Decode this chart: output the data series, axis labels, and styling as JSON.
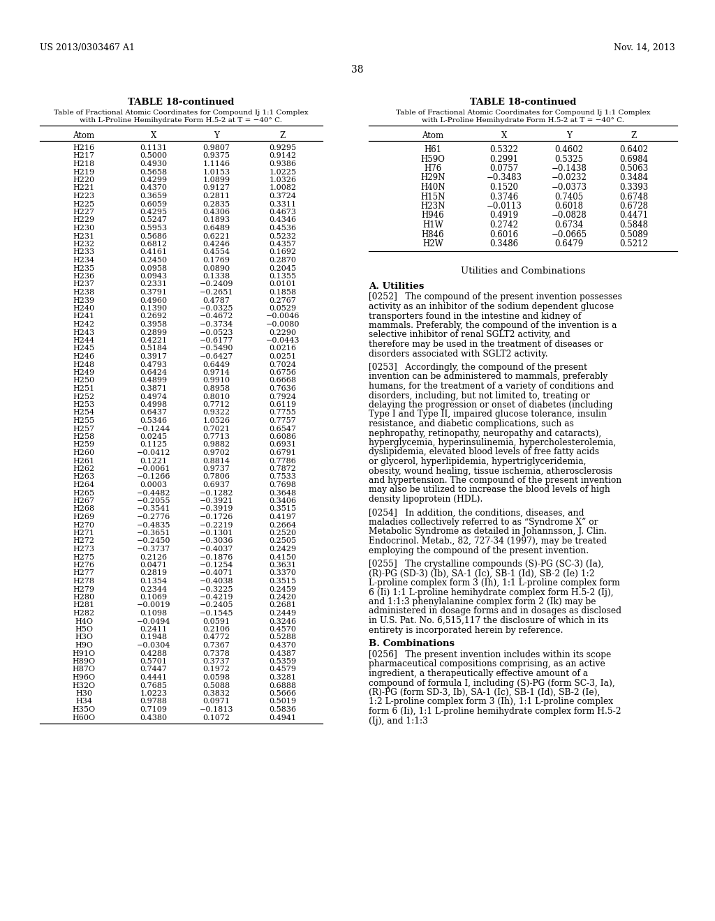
{
  "header_left": "US 2013/0303467 A1",
  "header_right": "Nov. 14, 2013",
  "page_number": "38",
  "left_table_title": "TABLE 18-continued",
  "left_table_subtitle_1": "Table of Fractional Atomic Coordinates for Compound Ij 1:1 Complex",
  "left_table_subtitle_2": "with L-Proline Hemihydrate Form H.5-2 at T = −40° C.",
  "left_columns": [
    "Atom",
    "X",
    "Y",
    "Z"
  ],
  "left_data": [
    [
      "H216",
      "0.1131",
      "0.9807",
      "0.9295"
    ],
    [
      "H217",
      "0.5000",
      "0.9375",
      "0.9142"
    ],
    [
      "H218",
      "0.4930",
      "1.1146",
      "0.9386"
    ],
    [
      "H219",
      "0.5658",
      "1.0153",
      "1.0225"
    ],
    [
      "H220",
      "0.4299",
      "1.0899",
      "1.0326"
    ],
    [
      "H221",
      "0.4370",
      "0.9127",
      "1.0082"
    ],
    [
      "H223",
      "0.3659",
      "0.2811",
      "0.3724"
    ],
    [
      "H225",
      "0.6059",
      "0.2835",
      "0.3311"
    ],
    [
      "H227",
      "0.4295",
      "0.4306",
      "0.4673"
    ],
    [
      "H229",
      "0.5247",
      "0.1893",
      "0.4346"
    ],
    [
      "H230",
      "0.5953",
      "0.6489",
      "0.4536"
    ],
    [
      "H231",
      "0.5686",
      "0.6221",
      "0.5232"
    ],
    [
      "H232",
      "0.6812",
      "0.4246",
      "0.4357"
    ],
    [
      "H233",
      "0.4161",
      "0.4554",
      "0.1692"
    ],
    [
      "H234",
      "0.2450",
      "0.1769",
      "0.2870"
    ],
    [
      "H235",
      "0.0958",
      "0.0890",
      "0.2045"
    ],
    [
      "H236",
      "0.0943",
      "0.1338",
      "0.1355"
    ],
    [
      "H237",
      "0.2331",
      "−0.2409",
      "0.0101"
    ],
    [
      "H238",
      "0.3791",
      "−0.2651",
      "0.1858"
    ],
    [
      "H239",
      "0.4960",
      "0.4787",
      "0.2767"
    ],
    [
      "H240",
      "0.1390",
      "−0.0325",
      "0.0529"
    ],
    [
      "H241",
      "0.2692",
      "−0.4672",
      "−0.0046"
    ],
    [
      "H242",
      "0.3958",
      "−0.3734",
      "−0.0080"
    ],
    [
      "H243",
      "0.2899",
      "−0.0523",
      "0.2290"
    ],
    [
      "H244",
      "0.4221",
      "−0.6177",
      "−0.0443"
    ],
    [
      "H245",
      "0.5184",
      "−0.5490",
      "0.0216"
    ],
    [
      "H246",
      "0.3917",
      "−0.6427",
      "0.0251"
    ],
    [
      "H248",
      "0.4793",
      "0.6449",
      "0.7024"
    ],
    [
      "H249",
      "0.6424",
      "0.9714",
      "0.6756"
    ],
    [
      "H250",
      "0.4899",
      "0.9910",
      "0.6668"
    ],
    [
      "H251",
      "0.3871",
      "0.8958",
      "0.7636"
    ],
    [
      "H252",
      "0.4974",
      "0.8010",
      "0.7924"
    ],
    [
      "H253",
      "0.4998",
      "0.7712",
      "0.6119"
    ],
    [
      "H254",
      "0.6437",
      "0.9322",
      "0.7755"
    ],
    [
      "H255",
      "0.5346",
      "1.0526",
      "0.7757"
    ],
    [
      "H257",
      "−0.1244",
      "0.7021",
      "0.6547"
    ],
    [
      "H258",
      "0.0245",
      "0.7713",
      "0.6086"
    ],
    [
      "H259",
      "0.1125",
      "0.9882",
      "0.6931"
    ],
    [
      "H260",
      "−0.0412",
      "0.9702",
      "0.6791"
    ],
    [
      "H261",
      "0.1221",
      "0.8814",
      "0.7786"
    ],
    [
      "H262",
      "−0.0061",
      "0.9737",
      "0.7872"
    ],
    [
      "H263",
      "−0.1266",
      "0.7806",
      "0.7533"
    ],
    [
      "H264",
      "0.0003",
      "0.6937",
      "0.7698"
    ],
    [
      "H265",
      "−0.4482",
      "−0.1282",
      "0.3648"
    ],
    [
      "H267",
      "−0.2055",
      "−0.3921",
      "0.3406"
    ],
    [
      "H268",
      "−0.3541",
      "−0.3919",
      "0.3515"
    ],
    [
      "H269",
      "−0.2776",
      "−0.1726",
      "0.4197"
    ],
    [
      "H270",
      "−0.4835",
      "−0.2219",
      "0.2664"
    ],
    [
      "H271",
      "−0.3651",
      "−0.1301",
      "0.2520"
    ],
    [
      "H272",
      "−0.2450",
      "−0.3036",
      "0.2505"
    ],
    [
      "H273",
      "−0.3737",
      "−0.4037",
      "0.2429"
    ],
    [
      "H275",
      "0.2126",
      "−0.1876",
      "0.4150"
    ],
    [
      "H276",
      "0.0471",
      "−0.1254",
      "0.3631"
    ],
    [
      "H277",
      "0.2819",
      "−0.4071",
      "0.3370"
    ],
    [
      "H278",
      "0.1354",
      "−0.4038",
      "0.3515"
    ],
    [
      "H279",
      "0.2344",
      "−0.3225",
      "0.2459"
    ],
    [
      "H280",
      "0.1069",
      "−0.4219",
      "0.2420"
    ],
    [
      "H281",
      "−0.0019",
      "−0.2405",
      "0.2681"
    ],
    [
      "H282",
      "0.1098",
      "−0.1545",
      "0.2449"
    ],
    [
      "H4O",
      "−0.0494",
      "0.0591",
      "0.3246"
    ],
    [
      "H5O",
      "0.2411",
      "0.2106",
      "0.4570"
    ],
    [
      "H3O",
      "0.1948",
      "0.4772",
      "0.5288"
    ],
    [
      "H9O",
      "−0.0304",
      "0.7367",
      "0.4370"
    ],
    [
      "H91O",
      "0.4288",
      "0.7378",
      "0.4387"
    ],
    [
      "H89O",
      "0.5701",
      "0.3737",
      "0.5359"
    ],
    [
      "H87O",
      "0.7447",
      "0.1972",
      "0.4579"
    ],
    [
      "H96O",
      "0.4441",
      "0.0598",
      "0.3281"
    ],
    [
      "H32O",
      "0.7685",
      "0.5088",
      "0.6888"
    ],
    [
      "H30",
      "1.0223",
      "0.3832",
      "0.5666"
    ],
    [
      "H34",
      "0.9788",
      "0.0971",
      "0.5019"
    ],
    [
      "H35O",
      "0.7109",
      "−0.1813",
      "0.5836"
    ],
    [
      "H60O",
      "0.4380",
      "0.1072",
      "0.4941"
    ]
  ],
  "right_table_title": "TABLE 18-continued",
  "right_table_subtitle_1": "Table of Fractional Atomic Coordinates for Compound Ij 1:1 Complex",
  "right_table_subtitle_2": "with L-Proline Hemihydrate Form H.5-2 at T = −40° C.",
  "right_columns": [
    "Atom",
    "X",
    "Y",
    "Z"
  ],
  "right_data": [
    [
      "H61",
      "0.5322",
      "0.4602",
      "0.6402"
    ],
    [
      "H59O",
      "0.2991",
      "0.5325",
      "0.6984"
    ],
    [
      "H76",
      "0.0757",
      "−0.1438",
      "0.5063"
    ],
    [
      "H29N",
      "−0.3483",
      "−0.0232",
      "0.3484"
    ],
    [
      "H40N",
      "0.1520",
      "−0.0373",
      "0.3393"
    ],
    [
      "H15N",
      "0.3746",
      "0.7405",
      "0.6748"
    ],
    [
      "H23N",
      "−0.0113",
      "0.6018",
      "0.6728"
    ],
    [
      "H946",
      "0.4919",
      "−0.0828",
      "0.4471"
    ],
    [
      "H1W",
      "0.2742",
      "0.6734",
      "0.5848"
    ],
    [
      "H846",
      "0.6016",
      "−0.0665",
      "0.5089"
    ],
    [
      "H2W",
      "0.3486",
      "0.6479",
      "0.5212"
    ]
  ],
  "section_title": "Utilities and Combinations",
  "section_a": "A. Utilities",
  "para_0252": "[0252]   The compound of the present invention possesses activity as an inhibitor of the sodium dependent glucose transporters found in the intestine and kidney of mammals. Preferably, the compound of the invention is a selective inhibitor of renal SGLT2 activity, and therefore may be used in the treatment of diseases or disorders associated with SGLT2 activity.",
  "para_0253": "[0253]   Accordingly, the compound of the present invention can be administered to mammals, preferably humans, for the treatment of a variety of conditions and disorders, including, but not limited to, treating or delaying the progression or onset of diabetes (including Type I and Type II, impaired glucose tolerance, insulin resistance, and diabetic complications, such as nephropathy, retinopathy, neuropathy and cataracts), hyperglycemia, hyperinsulinemia, hypercholesterolemia, dyslipidemia, elevated blood levels of free fatty acids or glycerol, hyperlipidemia, hypertriglyceridemia, obesity, wound healing, tissue ischemia, atherosclerosis and hypertension. The compound of the present invention may also be utilized to increase the blood levels of high density lipoprotein (HDL).",
  "para_0254": "[0254]   In addition, the conditions, diseases, and maladies collectively referred to as “Syndrome X” or Metabolic Syndrome as detailed in Johannsson, J. Clin. Endocrinol. Metab., 82, 727-34 (1997), may be treated employing the compound of the present invention.",
  "para_0255": "[0255]   The crystalline compounds (S)-PG (SC-3) (Ia), (R)-PG (SD-3) (Ib), SA-1 (Ic), SB-1 (Id), SB-2 (Ie) 1:2 L-proline complex form 3 (Ih), 1:1 L-proline complex form 6 (Ii) 1:1 L-proline hemihydrate complex form H.5-2 (Ij), and 1:1:3 phenylalanine complex form 2 (Ik) may be administered in dosage forms and in dosages as disclosed in U.S. Pat. No. 6,515,117 the disclosure of which in its entirety is incorporated herein by reference.",
  "section_b": "B. Combinations",
  "para_0256": "[0256]   The present invention includes within its scope pharmaceutical compositions comprising, as an active ingredient, a therapeutically effective amount of a compound of formula I, including (S)-PG (form SC-3, Ia), (R)-PG (form SD-3, Ib), SA-1 (Ic), SB-1 (Id), SB-2 (Ie), 1:2 L-proline complex form 3 (Ih), 1:1 L-proline complex form 6 (Ii), 1:1 L-proline hemihydrate complex form H.5-2 (Ij), and 1:1:3"
}
